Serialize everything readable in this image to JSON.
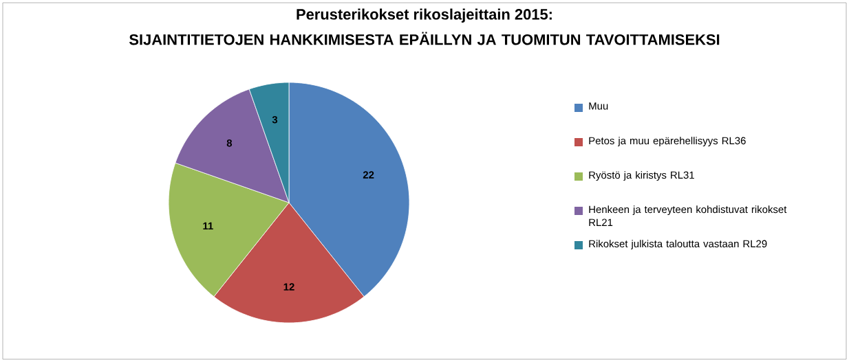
{
  "chart_data": {
    "type": "pie",
    "title": "Perusterikokset rikoslajeittain 2015:",
    "subtitle": "SIJAINTITIETOJEN HANKKIMISESTA EPÄILLYN JA TUOMITUN TAVOITTAMISEKSI",
    "categories": [
      "Muu",
      "Petos ja muu epärehellisyys RL36",
      "Ryöstö ja kiristys RL31",
      "Henkeen ja terveyteen kohdistuvat rikokset RL21",
      "Rikokset julkista taloutta vastaan RL29"
    ],
    "values": [
      22,
      12,
      11,
      8,
      3
    ],
    "colors": [
      "#4f81bd",
      "#c0504d",
      "#9bbb59",
      "#8064a2",
      "#31859c"
    ],
    "data_labels": true,
    "legend": "right"
  }
}
